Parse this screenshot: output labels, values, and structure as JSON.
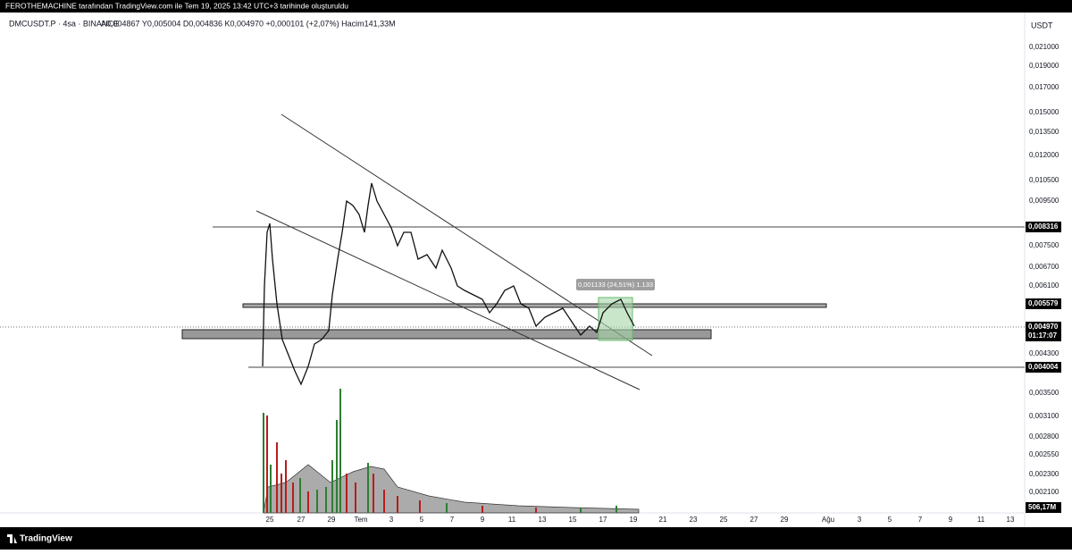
{
  "header": {
    "title": "FEROTHEMACHINE tarafından TradingView.com ile Tem 19, 2025 13:42 UTC+3 tarihinde oluşturuldu"
  },
  "legend": {
    "symbol": "DMCUSDT.P · 4sa · BINANCE",
    "ohlc": "A0,004867 Y0,005004 D0,004836 K0,004970 +0,000101 (+2,07%) Hacim141,33M"
  },
  "price_axis": {
    "currency": "USDT",
    "labels": [
      "0,021000",
      "0,019000",
      "0,017000",
      "0,015000",
      "0,013500",
      "0,012000",
      "0,010500",
      "0,009500",
      "0,007500",
      "0,006700",
      "0,006100",
      "0,004300",
      "0,003500",
      "0,003100",
      "0,002800",
      "0,002550",
      "0,002300",
      "0,002100"
    ]
  },
  "price_tags": [
    "0,008316",
    "0,005579",
    "0,004970",
    "01:17:07",
    "0,004004",
    "506,17M"
  ],
  "time_axis": {
    "labels": [
      "25",
      "27",
      "29",
      "Tem",
      "3",
      "5",
      "7",
      "9",
      "11",
      "13",
      "15",
      "17",
      "19",
      "21",
      "23",
      "25",
      "27",
      "29",
      "Ağu",
      "3",
      "5",
      "7",
      "9",
      "11",
      "13"
    ]
  },
  "measure": {
    "label": "0,001133 (24,51%) 1.133"
  },
  "footer": {
    "brand": "TradingView"
  }
}
